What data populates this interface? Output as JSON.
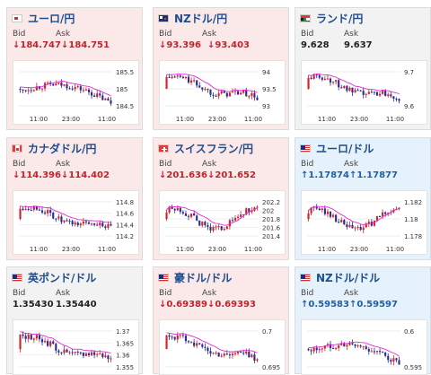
{
  "colors": {
    "up_candle": "#d2232a",
    "down_candle": "#2b2d8f",
    "ma_line": "#e028d8",
    "down_text": "#c0232c",
    "up_text": "#1f5fa8"
  },
  "labels": {
    "bid": "Bid",
    "ask": "Ask"
  },
  "panels": [
    {
      "name": "ユーロ/円",
      "flag": "eu",
      "trend": "down",
      "arrow": "↓",
      "bid": "184.747",
      "ask": "184.751",
      "chart_data": {
        "type": "candlestick",
        "yticks": [
          "185.5",
          "185",
          "184.5"
        ],
        "xticks": [
          "11:00",
          "23:00",
          "11:00"
        ]
      }
    },
    {
      "name": "NZドル/円",
      "flag": "nz",
      "trend": "down",
      "arrow": "↓",
      "bid": "93.396",
      "ask": "93.403",
      "chart_data": {
        "type": "candlestick",
        "yticks": [
          "94",
          "93.5",
          "93"
        ],
        "xticks": [
          "11:00",
          "23:00",
          "11:00"
        ]
      }
    },
    {
      "name": "ランド/円",
      "flag": "za",
      "trend": "flat",
      "arrow": "",
      "bid": "9.628",
      "ask": "9.637",
      "chart_data": {
        "type": "candlestick",
        "yticks": [
          "9.7",
          "9.6"
        ],
        "xticks": [
          "11:00",
          "23:00",
          "11:00"
        ]
      }
    },
    {
      "name": "カナダドル/円",
      "flag": "ca",
      "trend": "down",
      "arrow": "↓",
      "bid": "114.396",
      "ask": "114.402",
      "chart_data": {
        "type": "candlestick",
        "yticks": [
          "114.8",
          "114.6",
          "114.4",
          "114.2"
        ],
        "xticks": [
          "11:00",
          "23:00",
          "11:00"
        ]
      }
    },
    {
      "name": "スイスフラン/円",
      "flag": "ch",
      "trend": "down",
      "arrow": "↓",
      "bid": "201.636",
      "ask": "201.652",
      "chart_data": {
        "type": "candlestick",
        "yticks": [
          "202.2",
          "202",
          "201.8",
          "201.6",
          "201.4"
        ],
        "xticks": [
          "11:00",
          "23:00",
          "11:00"
        ]
      }
    },
    {
      "name": "ユーロ/ドル",
      "flag": "us",
      "trend": "up",
      "arrow": "↑",
      "bid": "1.17874",
      "ask": "1.17877",
      "chart_data": {
        "type": "candlestick",
        "yticks": [
          "1.182",
          "1.18",
          "1.178"
        ],
        "xticks": [
          "11:00",
          "23:00",
          "11:00"
        ]
      }
    },
    {
      "name": "英ポンド/ドル",
      "flag": "us",
      "trend": "flat",
      "arrow": "",
      "bid": "1.35430",
      "ask": "1.35440",
      "chart_data": {
        "type": "candlestick",
        "yticks": [
          "1.37",
          "1.365",
          "1.36",
          "1.355"
        ],
        "xticks": []
      }
    },
    {
      "name": "豪ドル/ドル",
      "flag": "us",
      "trend": "down",
      "arrow": "↓",
      "bid": "0.69389",
      "ask": "0.69393",
      "chart_data": {
        "type": "candlestick",
        "yticks": [
          "0.7",
          "0.695"
        ],
        "xticks": []
      }
    },
    {
      "name": "NZドル/ドル",
      "flag": "us",
      "trend": "up",
      "arrow": "↑",
      "bid": "0.59583",
      "ask": "0.59597",
      "chart_data": {
        "type": "candlestick",
        "yticks": [
          "0.6",
          "0.595"
        ],
        "xticks": []
      }
    }
  ]
}
